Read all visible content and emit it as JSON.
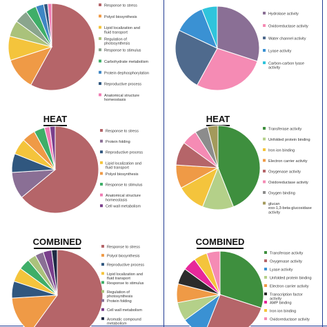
{
  "chart_data": [
    {
      "type": "pie",
      "title": "",
      "slices": [
        {
          "label": "Response to stress",
          "value": 58,
          "color": "#b56569"
        },
        {
          "label": "Polyol biosynthesis",
          "value": 12,
          "color": "#ef9a46"
        },
        {
          "label": "Lipid localization and fluid transport",
          "value": 9,
          "color": "#f4c43c"
        },
        {
          "label": "Regulation of photosynthesis",
          "value": 6,
          "color": "#aac27b"
        },
        {
          "label": "Response to stimulus",
          "value": 5,
          "color": "#8aa58d"
        },
        {
          "label": "Carbohydrate metabolism",
          "value": 4,
          "color": "#3fae68"
        },
        {
          "label": "Protein dephosphorylation",
          "value": 3,
          "color": "#3e86c4"
        },
        {
          "label": "Reproductive process",
          "value": 1.5,
          "color": "#30577f"
        },
        {
          "label": "Anatomical structure homeostasis",
          "value": 1.5,
          "color": "#f07bb3"
        }
      ]
    },
    {
      "type": "pie",
      "title": "",
      "slices": [
        {
          "label": "Hydrolase activity",
          "value": 30,
          "color": "#8a6f95"
        },
        {
          "label": "Oxidoreductase activity",
          "value": 28,
          "color": "#f58bb4"
        },
        {
          "label": "Water channel activity",
          "value": 24,
          "color": "#4f6a8d"
        },
        {
          "label": "Lyase activity",
          "value": 12,
          "color": "#3a91d3"
        },
        {
          "label": "Carbon-carbon lyase activity",
          "value": 6,
          "color": "#2fc4dc"
        }
      ]
    },
    {
      "type": "pie",
      "title": "HEAT",
      "slices": [
        {
          "label": "Response to stress",
          "value": 64,
          "color": "#b56569"
        },
        {
          "label": "Protein folding",
          "value": 10,
          "color": "#8a6f95"
        },
        {
          "label": "Reproductive process",
          "value": 7,
          "color": "#30577f"
        },
        {
          "label": "Lipid localization and fluid transport",
          "value": 6,
          "color": "#f4c43c"
        },
        {
          "label": "Polyol biosynthesis",
          "value": 5,
          "color": "#ef9a46"
        },
        {
          "label": "Response to stimulus",
          "value": 4,
          "color": "#3fae68"
        },
        {
          "label": "Anatomical structure homeostasis",
          "value": 2,
          "color": "#f07bb3"
        },
        {
          "label": "Cell wall metabolism",
          "value": 2,
          "color": "#7a3f8c"
        }
      ]
    },
    {
      "type": "pie",
      "title": "HEAT",
      "slices": [
        {
          "label": "Transferase activity",
          "value": 44,
          "color": "#3e8f3e"
        },
        {
          "label": "Unfolded protein binding",
          "value": 12,
          "color": "#b4d089"
        },
        {
          "label": "Iron ion binding",
          "value": 11,
          "color": "#f4c43c"
        },
        {
          "label": "Electron carrier activity",
          "value": 9,
          "color": "#ef9a46"
        },
        {
          "label": "Oxygenase activity",
          "value": 9,
          "color": "#b56569"
        },
        {
          "label": "Oxidoreductase activity",
          "value": 6,
          "color": "#f58bb4"
        },
        {
          "label": "Oxygen binding",
          "value": 5,
          "color": "#8c8c8c"
        },
        {
          "label": "glucan exo-1,3-beta-glucosidase activity",
          "value": 4,
          "color": "#a39a5c"
        }
      ]
    },
    {
      "type": "pie",
      "title": "COMBINED",
      "slices": [
        {
          "label": "Response to stress",
          "value": 60,
          "color": "#b56569"
        },
        {
          "label": "Polyol biosynthesis",
          "value": 14,
          "color": "#ef9a46"
        },
        {
          "label": "Reproductive process",
          "value": 6,
          "color": "#30577f"
        },
        {
          "label": "Lipid localization and fluid transport",
          "value": 5,
          "color": "#f4c43c"
        },
        {
          "label": "Response to stimulus",
          "value": 4,
          "color": "#3fae68"
        },
        {
          "label": "Regulation of photosynthesis",
          "value": 3,
          "color": "#aac27b"
        },
        {
          "label": "Protein folding",
          "value": 3,
          "color": "#8a6f95"
        },
        {
          "label": "Cell wall metabolism",
          "value": 3,
          "color": "#7a3f8c"
        },
        {
          "label": "Aromatic compound metabolism",
          "value": 2,
          "color": "#1f2a44"
        }
      ]
    },
    {
      "type": "pie",
      "title": "COMBINED",
      "slices": [
        {
          "label": "Transferase activity",
          "value": 30,
          "color": "#3e8f3e"
        },
        {
          "label": "Oxygenase activity",
          "value": 26,
          "color": "#b56569"
        },
        {
          "label": "Lyase activity",
          "value": 9,
          "color": "#3a91d3"
        },
        {
          "label": "Unfolded protein binding",
          "value": 7,
          "color": "#b4d089"
        },
        {
          "label": "Electron carrier activity",
          "value": 7,
          "color": "#ef9a46"
        },
        {
          "label": "Transcription factor activity",
          "value": 6,
          "color": "#2b2b2b"
        },
        {
          "label": "AMP binding",
          "value": 5,
          "color": "#e7289a"
        },
        {
          "label": "Iron ion binding",
          "value": 5,
          "color": "#f4c43c"
        },
        {
          "label": "Oxidoreductase activity",
          "value": 5,
          "color": "#f58bb4"
        }
      ]
    }
  ]
}
